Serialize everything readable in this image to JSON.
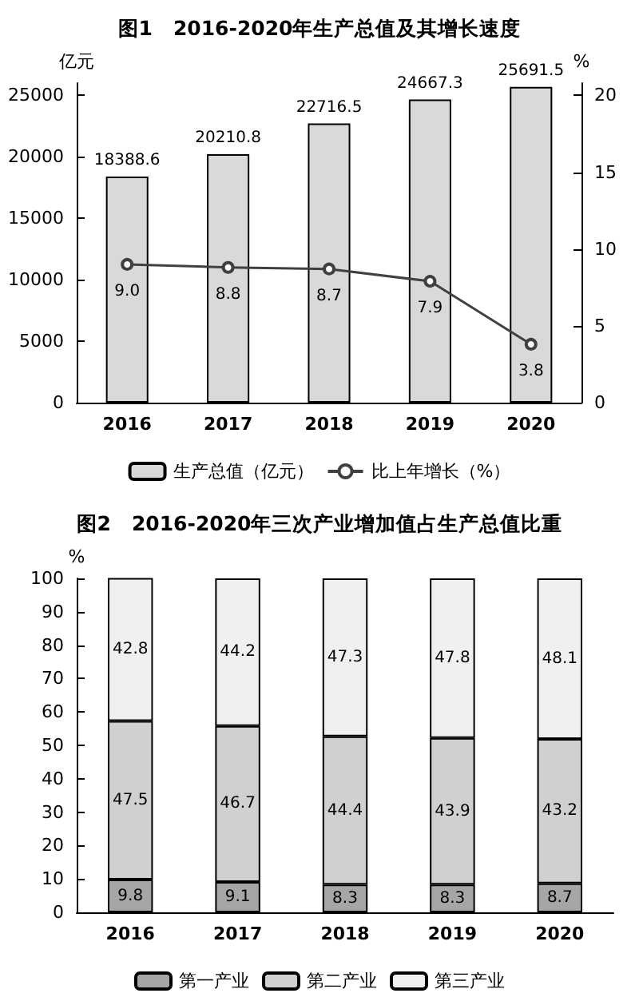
{
  "chart_data": [
    {
      "type": "bar",
      "title": "图1　2016-2020年生产总值及其增长速度",
      "ylabel": "亿元",
      "y2label": "%",
      "categories": [
        "2016",
        "2017",
        "2018",
        "2019",
        "2020"
      ],
      "series": [
        {
          "name": "生产总值（亿元）",
          "color": "#d9d9d9",
          "values": [
            18388.6,
            20210.8,
            22716.5,
            24667.3,
            25691.5
          ],
          "data_labels": true
        },
        {
          "name": "比上年增长（%）",
          "type": "line",
          "axis": "y2",
          "color": "#404040",
          "marker": "circle",
          "values": [
            9.0,
            8.8,
            8.7,
            7.9,
            3.8
          ],
          "value_labels": [
            "9.0",
            "8.8",
            "8.7",
            "7.9",
            "3.8"
          ]
        }
      ],
      "ylim": [
        0,
        26000
      ],
      "yticks": [
        0,
        5000,
        10000,
        15000,
        20000,
        25000
      ],
      "y2lim": [
        0,
        20.8
      ],
      "y2ticks": [
        0,
        5,
        10,
        15,
        20
      ],
      "grid": false,
      "legend": "bottom"
    },
    {
      "type": "bar",
      "title": "图2　2016-2020年三次产业增加值占生产总值比重",
      "ylabel": "%",
      "categories": [
        "2016",
        "2017",
        "2018",
        "2019",
        "2020"
      ],
      "stacked": true,
      "data_labels": true,
      "series": [
        {
          "name": "第一产业",
          "color": "#a6a6a6",
          "values": [
            9.8,
            9.1,
            8.3,
            8.3,
            8.7
          ]
        },
        {
          "name": "第二产业",
          "color": "#d0d0d0",
          "values": [
            47.5,
            46.7,
            44.4,
            43.9,
            43.2
          ]
        },
        {
          "name": "第三产业",
          "color": "#f0f0f0",
          "values": [
            42.8,
            44.2,
            47.3,
            47.8,
            48.1
          ]
        }
      ],
      "ylim": [
        0,
        100
      ],
      "yticks": [
        0,
        10,
        20,
        30,
        40,
        50,
        60,
        70,
        80,
        90,
        100
      ],
      "grid": false,
      "legend": "bottom"
    }
  ]
}
